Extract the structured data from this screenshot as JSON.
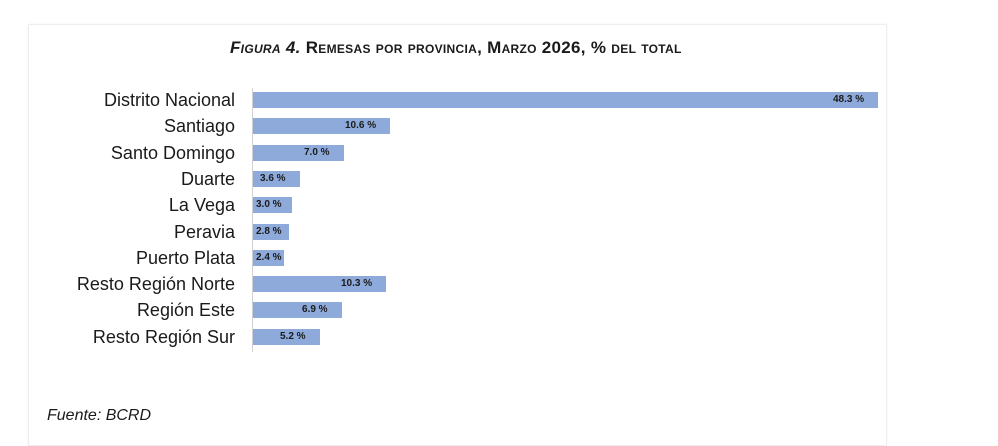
{
  "title": {
    "prefix": "Figura 4.",
    "text": "Remesas por provincia, Marzo 2026, % del total"
  },
  "source": "Fuente: BCRD",
  "colors": {
    "bar": "#8eaadb",
    "text": "#1a1a1a"
  },
  "chart_data": {
    "type": "bar",
    "orientation": "horizontal",
    "title": "Figura 4. Remesas por provincia, Marzo 2026, % del total",
    "categories": [
      "Distrito Nacional",
      "Santiago",
      "Santo Domingo",
      "Duarte",
      "La Vega",
      "Peravia",
      "Puerto Plata",
      "Resto Región Norte",
      "Región Este",
      "Resto Región Sur"
    ],
    "values": [
      48.3,
      10.6,
      7.0,
      3.6,
      3.0,
      2.8,
      2.4,
      10.3,
      6.9,
      5.2
    ],
    "value_labels": [
      "48.3 %",
      "10.6 %",
      "7.0 %",
      "3.6 %",
      "3.0 %",
      "2.8 %",
      "2.4 %",
      "10.3 %",
      "6.9 %",
      "5.2 %"
    ],
    "xlim": [
      0,
      48.3
    ],
    "grid": false,
    "legend": "none"
  }
}
